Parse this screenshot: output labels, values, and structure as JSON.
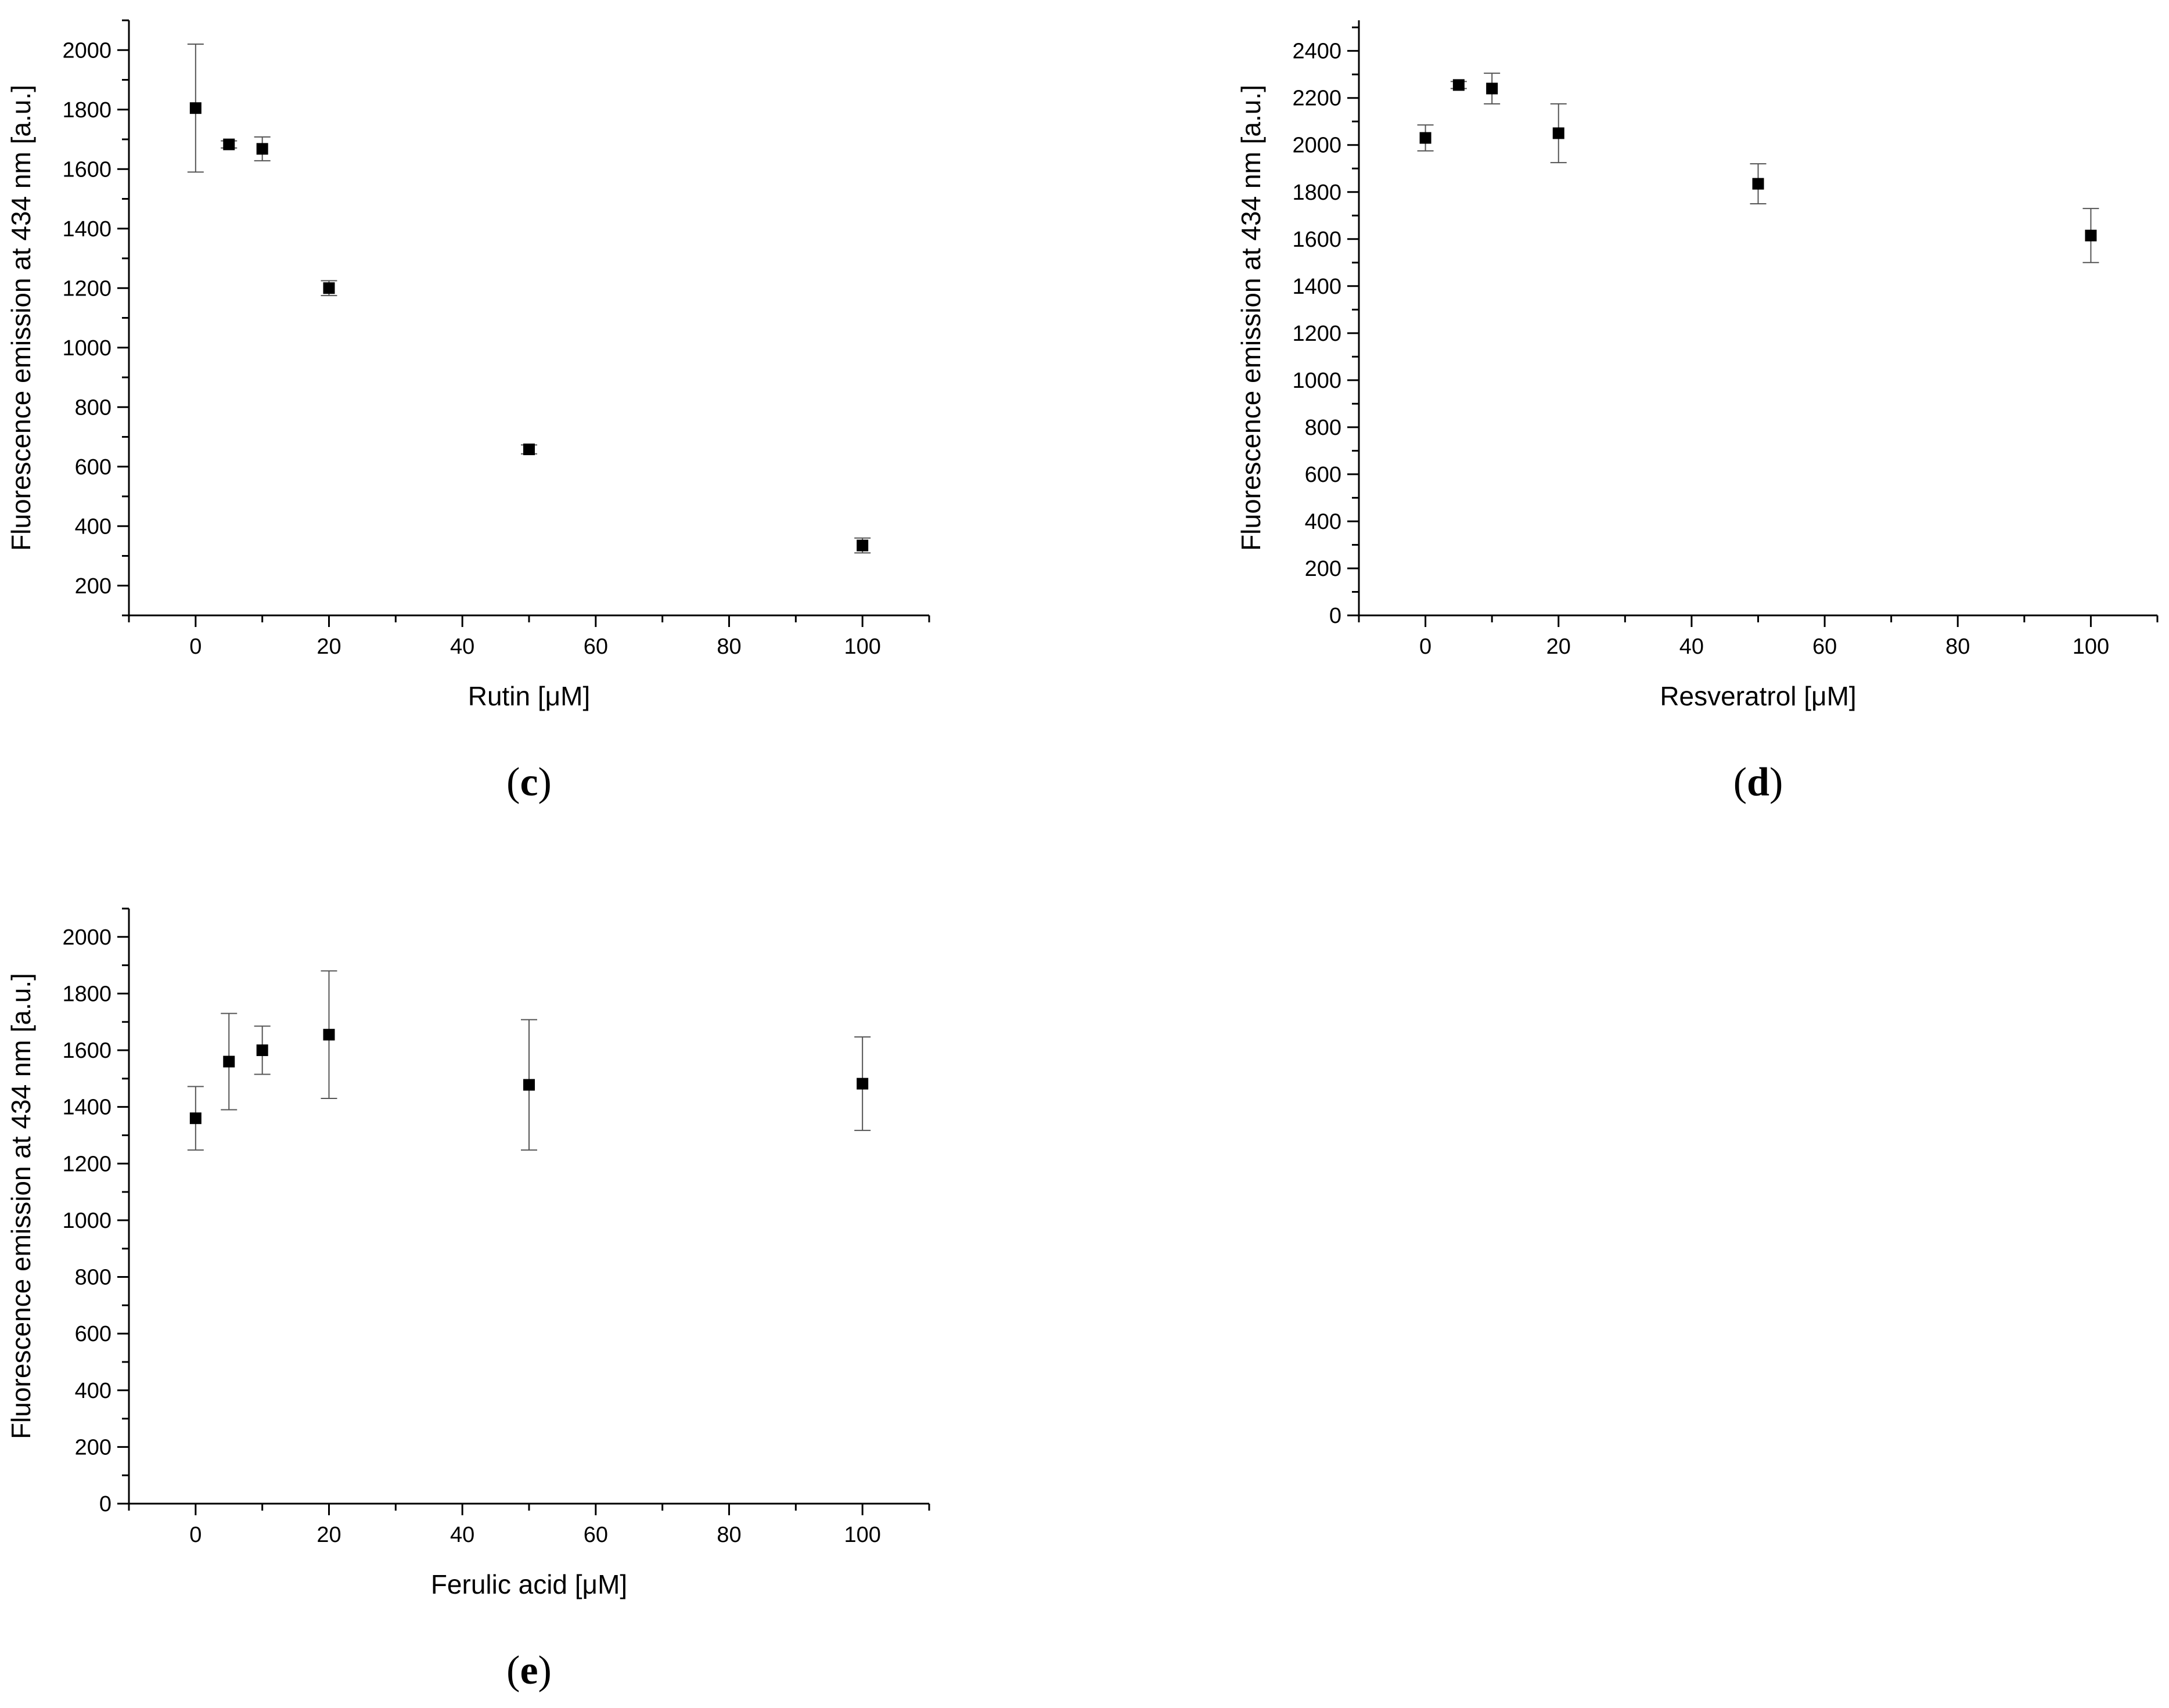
{
  "chart_data": [
    {
      "type": "scatter",
      "panel_label": "(c)",
      "panel_letter": "c",
      "xlabel": "Rutin [μM]",
      "ylabel": "Fluorescence emission at 434 nm [a.u.]",
      "xlim": [
        -10,
        110
      ],
      "ylim": [
        100,
        2100
      ],
      "xticks": [
        0,
        20,
        40,
        60,
        80,
        100
      ],
      "yticks": [
        200,
        400,
        600,
        800,
        1000,
        1200,
        1400,
        1600,
        1800,
        2000
      ],
      "x": [
        0,
        5,
        10,
        20,
        50,
        100
      ],
      "y": [
        1805,
        1683,
        1668,
        1200,
        658,
        335
      ],
      "error": [
        215,
        12,
        40,
        25,
        15,
        25
      ],
      "grid": false,
      "marker": "square"
    },
    {
      "type": "scatter",
      "panel_label": "(d)",
      "panel_letter": "d",
      "xlabel": "Resveratrol [μM]",
      "ylabel": "Fluorescence emission at 434 nm [a.u.]",
      "xlim": [
        -10,
        110
      ],
      "ylim": [
        0,
        2530
      ],
      "xticks": [
        0,
        20,
        40,
        60,
        80,
        100
      ],
      "yticks": [
        0,
        200,
        400,
        600,
        800,
        1000,
        1200,
        1400,
        1600,
        1800,
        2000,
        2200,
        2400
      ],
      "x": [
        0,
        5,
        10,
        20,
        50,
        100
      ],
      "y": [
        2030,
        2255,
        2240,
        2050,
        1835,
        1615
      ],
      "error": [
        55,
        15,
        65,
        125,
        85,
        115
      ],
      "grid": false,
      "marker": "square"
    },
    {
      "type": "scatter",
      "panel_label": "(e)",
      "panel_letter": "e",
      "xlabel": "Ferulic acid [μM]",
      "ylabel": "Fluorescence emission at 434 nm [a.u.]",
      "xlim": [
        -10,
        110
      ],
      "ylim": [
        0,
        2100
      ],
      "xticks": [
        0,
        20,
        40,
        60,
        80,
        100
      ],
      "yticks": [
        0,
        200,
        400,
        600,
        800,
        1000,
        1200,
        1400,
        1600,
        1800,
        2000
      ],
      "x": [
        0,
        5,
        10,
        20,
        50,
        100
      ],
      "y": [
        1360,
        1560,
        1600,
        1655,
        1478,
        1482
      ],
      "error": [
        112,
        170,
        85,
        225,
        230,
        165
      ],
      "grid": false,
      "marker": "square"
    }
  ]
}
